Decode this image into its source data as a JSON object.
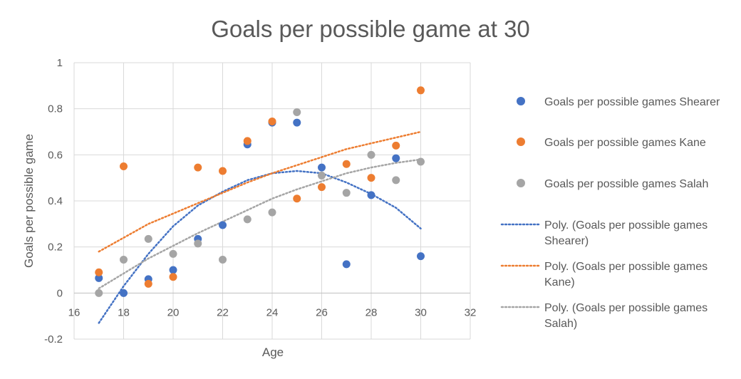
{
  "chart_data": {
    "type": "scatter",
    "title": "Goals per possible game at 30",
    "xlabel": "Age",
    "ylabel": "Goals per possible game",
    "xlim": [
      16,
      32
    ],
    "ylim": [
      -0.2,
      1
    ],
    "x_ticks": [
      16,
      18,
      20,
      22,
      24,
      26,
      28,
      30,
      32
    ],
    "y_ticks": [
      -0.2,
      0,
      0.2,
      0.4,
      0.6,
      0.8,
      1
    ],
    "x_tick_labels": [
      "16",
      "18",
      "20",
      "22",
      "24",
      "26",
      "28",
      "30",
      "32"
    ],
    "y_tick_labels": [
      "-0.2",
      "0",
      "0.2",
      "0.4",
      "0.6",
      "0.8",
      "1"
    ],
    "grid": true,
    "legend_position": "right",
    "series": [
      {
        "name": "Goals per possible games Shearer",
        "color": "#4472C4",
        "points": [
          {
            "x": 17,
            "y": 0.065
          },
          {
            "x": 18,
            "y": 0.0
          },
          {
            "x": 19,
            "y": 0.06
          },
          {
            "x": 20,
            "y": 0.1
          },
          {
            "x": 21,
            "y": 0.235
          },
          {
            "x": 22,
            "y": 0.295
          },
          {
            "x": 23,
            "y": 0.645
          },
          {
            "x": 24,
            "y": 0.74
          },
          {
            "x": 25,
            "y": 0.74
          },
          {
            "x": 26,
            "y": 0.545
          },
          {
            "x": 27,
            "y": 0.125
          },
          {
            "x": 28,
            "y": 0.425
          },
          {
            "x": 29,
            "y": 0.585
          },
          {
            "x": 30,
            "y": 0.16
          }
        ],
        "trend": {
          "name": "Poly. (Goals per possible games Shearer)",
          "x": [
            17,
            18,
            19,
            20,
            21,
            22,
            23,
            24,
            25,
            26,
            27,
            28,
            29,
            30
          ],
          "y": [
            -0.13,
            0.03,
            0.17,
            0.29,
            0.38,
            0.44,
            0.49,
            0.52,
            0.53,
            0.52,
            0.48,
            0.43,
            0.37,
            0.28
          ]
        }
      },
      {
        "name": "Goals per possible games Kane",
        "color": "#ED7D31",
        "points": [
          {
            "x": 17,
            "y": 0.09
          },
          {
            "x": 18,
            "y": 0.55
          },
          {
            "x": 19,
            "y": 0.04
          },
          {
            "x": 20,
            "y": 0.07
          },
          {
            "x": 21,
            "y": 0.545
          },
          {
            "x": 22,
            "y": 0.53
          },
          {
            "x": 23,
            "y": 0.66
          },
          {
            "x": 24,
            "y": 0.745
          },
          {
            "x": 25,
            "y": 0.41
          },
          {
            "x": 26,
            "y": 0.46
          },
          {
            "x": 27,
            "y": 0.56
          },
          {
            "x": 28,
            "y": 0.5
          },
          {
            "x": 29,
            "y": 0.64
          },
          {
            "x": 30,
            "y": 0.88
          }
        ],
        "trend": {
          "name": "Poly. (Goals per possible games Kane)",
          "x": [
            17,
            18,
            19,
            20,
            21,
            22,
            23,
            24,
            25,
            26,
            27,
            28,
            29,
            30
          ],
          "y": [
            0.18,
            0.24,
            0.3,
            0.345,
            0.39,
            0.435,
            0.48,
            0.52,
            0.555,
            0.59,
            0.625,
            0.65,
            0.675,
            0.7
          ]
        }
      },
      {
        "name": "Goals per possible games Salah",
        "color": "#A5A5A5",
        "points": [
          {
            "x": 17,
            "y": 0.0
          },
          {
            "x": 18,
            "y": 0.145
          },
          {
            "x": 19,
            "y": 0.235
          },
          {
            "x": 20,
            "y": 0.17
          },
          {
            "x": 21,
            "y": 0.215
          },
          {
            "x": 22,
            "y": 0.145
          },
          {
            "x": 23,
            "y": 0.32
          },
          {
            "x": 24,
            "y": 0.35
          },
          {
            "x": 25,
            "y": 0.785
          },
          {
            "x": 26,
            "y": 0.51
          },
          {
            "x": 27,
            "y": 0.435
          },
          {
            "x": 28,
            "y": 0.6
          },
          {
            "x": 29,
            "y": 0.49
          },
          {
            "x": 30,
            "y": 0.57
          }
        ],
        "trend": {
          "name": "Poly. (Goals per possible games Salah)",
          "x": [
            17,
            18,
            19,
            20,
            21,
            22,
            23,
            24,
            25,
            26,
            27,
            28,
            29,
            30
          ],
          "y": [
            0.02,
            0.085,
            0.15,
            0.205,
            0.26,
            0.31,
            0.36,
            0.41,
            0.45,
            0.485,
            0.52,
            0.545,
            0.565,
            0.58
          ]
        }
      }
    ],
    "legend": [
      {
        "kind": "marker",
        "series": 0,
        "lines": [
          "Goals per possible games Shearer"
        ]
      },
      {
        "kind": "marker",
        "series": 1,
        "lines": [
          "Goals per possible games Kane"
        ]
      },
      {
        "kind": "marker",
        "series": 2,
        "lines": [
          "Goals per possible games Salah"
        ]
      },
      {
        "kind": "trend",
        "series": 0,
        "lines": [
          "Poly. (Goals per possible games",
          "Shearer)"
        ]
      },
      {
        "kind": "trend",
        "series": 1,
        "lines": [
          "Poly. (Goals per possible games",
          "Kane)"
        ]
      },
      {
        "kind": "trend",
        "series": 2,
        "lines": [
          "Poly. (Goals per possible games",
          "Salah)"
        ]
      }
    ]
  }
}
